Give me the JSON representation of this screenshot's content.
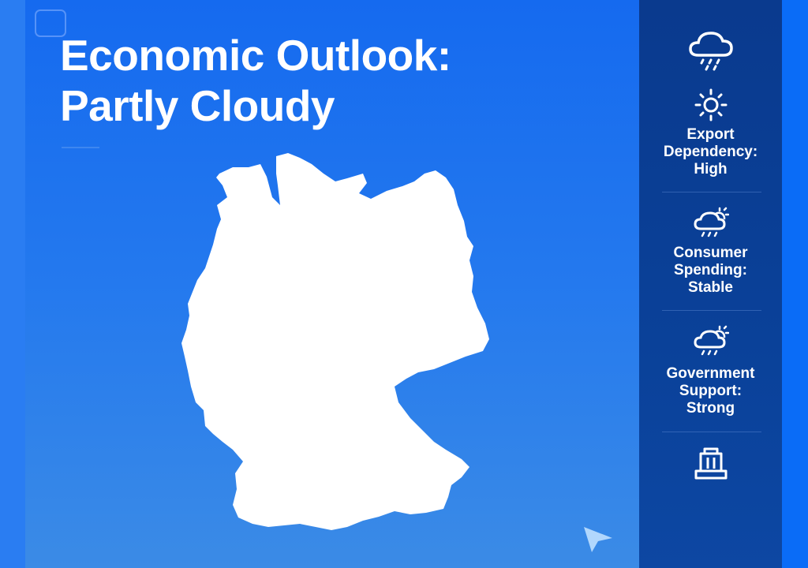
{
  "title": {
    "line1": "Economic Outlook:",
    "line2": "Partly Cloudy"
  },
  "map": {
    "region": "Germany",
    "fill": "#ffffff"
  },
  "colors": {
    "background": "#1e72ee",
    "panel": "#0a3d93",
    "text": "#ffffff"
  },
  "panel": {
    "top_icon": "cloud-rain-icon",
    "items": [
      {
        "icon": "sun-icon",
        "label": "Export Dependency: High",
        "lines": [
          "Export",
          "Dependency:",
          "High"
        ]
      },
      {
        "icon": "cloud-sun-rain-icon",
        "label": "Consumer Spending: Stable",
        "lines": [
          "Consumer",
          "Spending:",
          "Stable"
        ]
      },
      {
        "icon": "cloud-sun-rain-icon",
        "label": "Government Support: Strong",
        "lines": [
          "Government",
          "Support:",
          "Strong"
        ]
      }
    ],
    "bottom_icon": "government-building-icon"
  }
}
